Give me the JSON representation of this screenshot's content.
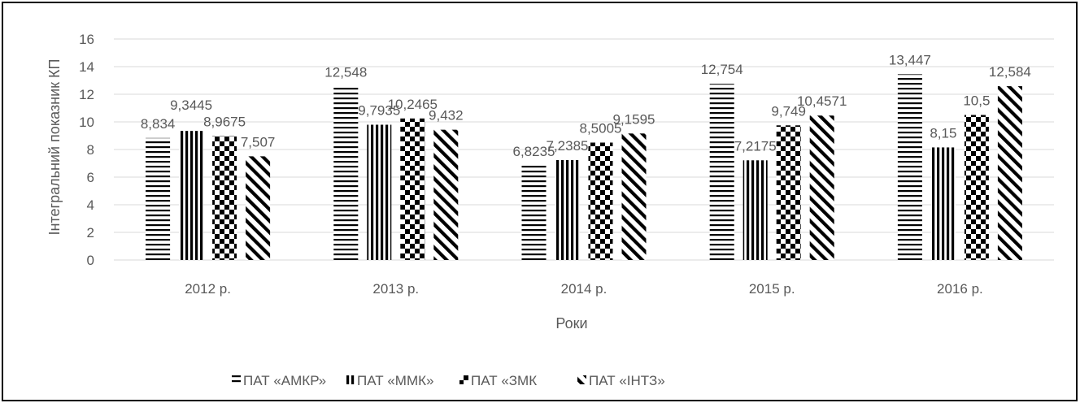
{
  "chart_data": {
    "type": "bar",
    "categories": [
      "2012 р.",
      "2013 р.",
      "2014 р.",
      "2015 р.",
      "2016 р."
    ],
    "series": [
      {
        "name": "ПАТ «АМКР»",
        "values": [
          8.834,
          12.548,
          6.8235,
          12.754,
          13.447
        ],
        "labels": [
          "8,834",
          "12,548",
          "6,8235",
          "12,754",
          "13,447"
        ],
        "pattern": "horizontal-lines"
      },
      {
        "name": "ПАТ «ММК»",
        "values": [
          9.3445,
          9.7935,
          7.2385,
          7.2175,
          8.15
        ],
        "labels": [
          "9,3445",
          "9,7935",
          "7,2385",
          "7,2175",
          "8,15"
        ],
        "pattern": "vertical-lines"
      },
      {
        "name": "ПАТ «ЗМК",
        "values": [
          8.9675,
          10.2465,
          8.5005,
          9.749,
          10.5
        ],
        "labels": [
          "8,9675",
          "10,2465",
          "8,5005",
          "9,749",
          "10,5"
        ],
        "pattern": "checkerboard"
      },
      {
        "name": "ПАТ «ІНТЗ»",
        "values": [
          7.507,
          9.432,
          9.1595,
          10.4571,
          12.584
        ],
        "labels": [
          "7,507",
          "9,432",
          "9,1595",
          "10,4571",
          "12,584"
        ],
        "pattern": "diagonal-lines"
      }
    ],
    "title": "",
    "xlabel": "Роки",
    "ylabel": "Інтегральний показник КП",
    "ylim": [
      0,
      16
    ],
    "yticks": [
      0,
      2,
      4,
      6,
      8,
      10,
      12,
      14,
      16
    ],
    "grid": true,
    "legend_position": "bottom",
    "colors": {
      "bars": "#000000",
      "grid": "#d9d9d9",
      "text": "#595959",
      "frame": "#000000"
    }
  }
}
